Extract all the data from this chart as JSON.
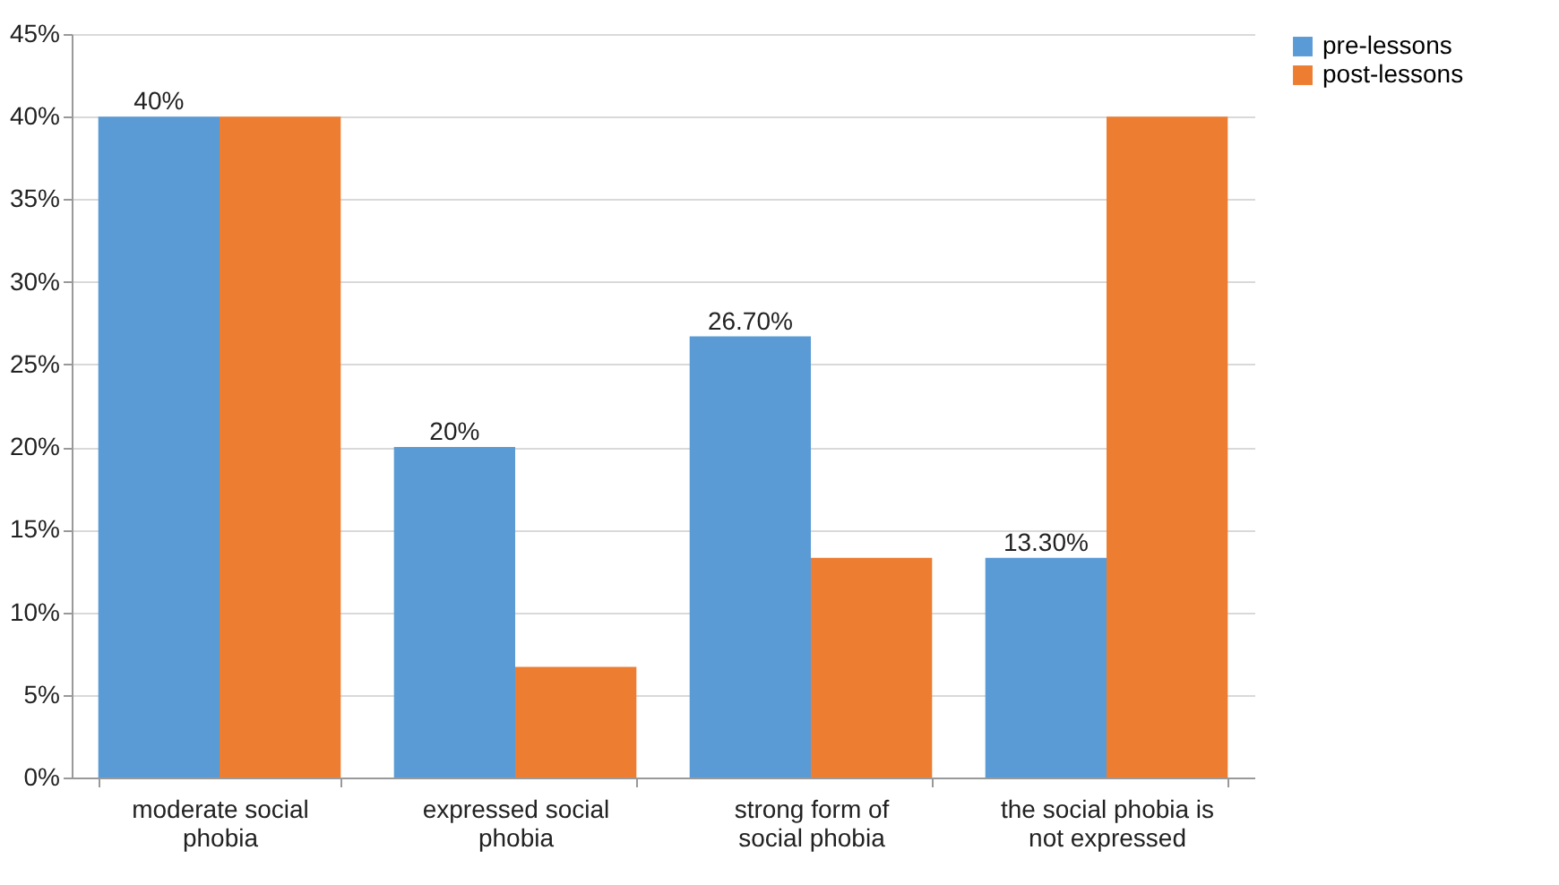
{
  "chart_data": {
    "type": "bar",
    "categories": [
      "moderate social phobia",
      "expressed social phobia",
      "strong form of social phobia",
      "the social phobia is not expressed"
    ],
    "series": [
      {
        "name": "pre-lessons",
        "color": "#5b9bd5",
        "values": [
          40,
          20,
          26.7,
          13.3
        ],
        "value_labels": [
          "40%",
          "20%",
          "26.70%",
          "13.30%"
        ]
      },
      {
        "name": "post-lessons",
        "color": "#ed7d31",
        "values": [
          40,
          6.7,
          13.3,
          40
        ]
      }
    ],
    "ylim": [
      0,
      45
    ],
    "yticks": [
      {
        "value": 0,
        "label": "0%"
      },
      {
        "value": 5,
        "label": "5%"
      },
      {
        "value": 10,
        "label": "10%"
      },
      {
        "value": 15,
        "label": "15%"
      },
      {
        "value": 20,
        "label": "20%"
      },
      {
        "value": 25,
        "label": "25%"
      },
      {
        "value": 30,
        "label": "30%"
      },
      {
        "value": 35,
        "label": "35%"
      },
      {
        "value": 40,
        "label": "40%"
      },
      {
        "value": 45,
        "label": "45%"
      }
    ],
    "grid": "y",
    "legend": "right"
  }
}
